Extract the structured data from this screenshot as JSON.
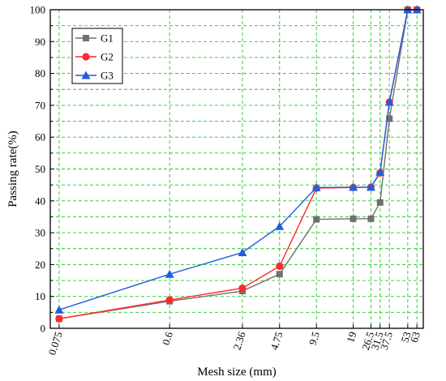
{
  "chart_data": {
    "type": "line",
    "title": "",
    "xlabel": "Mesh size (mm)",
    "ylabel": "Passing rate(%)",
    "x_scale": "log",
    "x": [
      0.075,
      0.6,
      2.36,
      4.75,
      9.5,
      19,
      26.5,
      31.5,
      37.5,
      53,
      63
    ],
    "x_tick_labels": [
      "0.075",
      "0.6",
      "2.36",
      "4.75",
      "9.5",
      "19",
      "26.5",
      "31.5",
      "37.5",
      "53",
      "63"
    ],
    "ylim": [
      0,
      100
    ],
    "y_ticks": [
      0,
      10,
      20,
      30,
      40,
      50,
      60,
      70,
      80,
      90,
      100
    ],
    "grid": true,
    "legend_position": "top-left",
    "series": [
      {
        "name": "G1",
        "color": "#707070",
        "marker": "square",
        "values": [
          3,
          8.5,
          11.7,
          17,
          34.2,
          34.4,
          34.4,
          39.5,
          65.8,
          100,
          100
        ]
      },
      {
        "name": "G2",
        "color": "#ff2a2a",
        "marker": "circle",
        "values": [
          3,
          8.9,
          12.6,
          19.5,
          44,
          44.2,
          44.3,
          48.8,
          71,
          100,
          100
        ]
      },
      {
        "name": "G3",
        "color": "#1f5fdc",
        "marker": "triangle",
        "values": [
          5.8,
          17,
          23.8,
          32,
          44.2,
          44.3,
          44.3,
          49,
          71,
          100,
          100
        ]
      }
    ]
  }
}
